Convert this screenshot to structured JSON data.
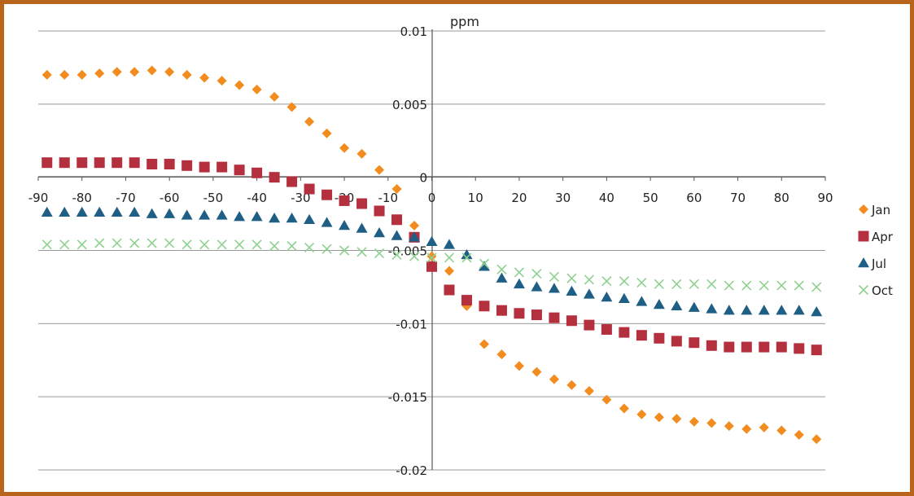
{
  "chart_data": {
    "type": "scatter",
    "title": "",
    "xlabel": "",
    "ylabel": "ppm",
    "xlim": [
      -90,
      90
    ],
    "ylim": [
      -0.02,
      0.01
    ],
    "xticks": [
      -90,
      -80,
      -70,
      -60,
      -50,
      -40,
      -30,
      -20,
      -10,
      0,
      10,
      20,
      30,
      40,
      50,
      60,
      70,
      80,
      90
    ],
    "xtick_labels": [
      "-90",
      "-80",
      "-70",
      "-60",
      "-50",
      "-40",
      "-30",
      "-20",
      "-10",
      "0",
      "10",
      "20",
      "30",
      "40",
      "50",
      "60",
      "70",
      "80",
      "90"
    ],
    "yticks": [
      0.01,
      0.005,
      0,
      -0.005,
      -0.01,
      -0.015,
      -0.02
    ],
    "ytick_labels": [
      "0.01",
      "0.005",
      "0",
      "-0.005",
      "-0.01",
      "-0.015",
      "-0.02"
    ],
    "grid": "horizontal",
    "legend_position": "right",
    "x": [
      -88,
      -84,
      -80,
      -76,
      -72,
      -68,
      -64,
      -60,
      -56,
      -52,
      -48,
      -44,
      -40,
      -36,
      -32,
      -28,
      -24,
      -20,
      -16,
      -12,
      -8,
      -4,
      0,
      4,
      8,
      12,
      16,
      20,
      24,
      28,
      32,
      36,
      40,
      44,
      48,
      52,
      56,
      60,
      64,
      68,
      72,
      76,
      80,
      84,
      88
    ],
    "series": [
      {
        "name": "Jan",
        "marker": "diamond",
        "color": "#f28c1e",
        "values": [
          0.007,
          0.007,
          0.007,
          0.0071,
          0.0072,
          0.0072,
          0.0073,
          0.0072,
          0.007,
          0.0068,
          0.0066,
          0.0063,
          0.006,
          0.0055,
          0.0048,
          0.0038,
          0.003,
          0.002,
          0.0016,
          0.0005,
          -0.0008,
          -0.0033,
          -0.0054,
          -0.0064,
          -0.0088,
          -0.0114,
          -0.0121,
          -0.0129,
          -0.0133,
          -0.0138,
          -0.0142,
          -0.0146,
          -0.0152,
          -0.0158,
          -0.0162,
          -0.0164,
          -0.0165,
          -0.0167,
          -0.0168,
          -0.017,
          -0.0172,
          -0.0171,
          -0.0173,
          -0.0176,
          -0.0179
        ]
      },
      {
        "name": "Apr",
        "marker": "square",
        "color": "#b5303e",
        "values": [
          0.001,
          0.001,
          0.001,
          0.001,
          0.001,
          0.001,
          0.0009,
          0.0009,
          0.0008,
          0.0007,
          0.0007,
          0.0005,
          0.0003,
          0.0,
          -0.0003,
          -0.0008,
          -0.0012,
          -0.0016,
          -0.0018,
          -0.0023,
          -0.0029,
          -0.0041,
          -0.0061,
          -0.0077,
          -0.0084,
          -0.0088,
          -0.0091,
          -0.0093,
          -0.0094,
          -0.0096,
          -0.0098,
          -0.0101,
          -0.0104,
          -0.0106,
          -0.0108,
          -0.011,
          -0.0112,
          -0.0113,
          -0.0115,
          -0.0116,
          -0.0116,
          -0.0116,
          -0.0116,
          -0.0117,
          -0.0118
        ]
      },
      {
        "name": "Jul",
        "marker": "triangle",
        "color": "#1f5f85",
        "values": [
          -0.0024,
          -0.0024,
          -0.0024,
          -0.0024,
          -0.0024,
          -0.0024,
          -0.0025,
          -0.0025,
          -0.0026,
          -0.0026,
          -0.0026,
          -0.0027,
          -0.0027,
          -0.0028,
          -0.0028,
          -0.0029,
          -0.0031,
          -0.0033,
          -0.0035,
          -0.0038,
          -0.004,
          -0.0041,
          -0.0044,
          -0.0046,
          -0.0053,
          -0.0061,
          -0.0069,
          -0.0073,
          -0.0075,
          -0.0076,
          -0.0078,
          -0.008,
          -0.0082,
          -0.0083,
          -0.0085,
          -0.0087,
          -0.0088,
          -0.0089,
          -0.009,
          -0.0091,
          -0.0091,
          -0.0091,
          -0.0091,
          -0.0091,
          -0.0092
        ]
      },
      {
        "name": "Oct",
        "marker": "x",
        "color": "#8ed18f",
        "values": [
          -0.0046,
          -0.0046,
          -0.0046,
          -0.0045,
          -0.0045,
          -0.0045,
          -0.0045,
          -0.0045,
          -0.0046,
          -0.0046,
          -0.0046,
          -0.0046,
          -0.0046,
          -0.0047,
          -0.0047,
          -0.0048,
          -0.0049,
          -0.005,
          -0.0051,
          -0.0052,
          -0.0053,
          -0.0054,
          -0.0055,
          -0.0055,
          -0.0055,
          -0.0059,
          -0.0063,
          -0.0065,
          -0.0066,
          -0.0068,
          -0.0069,
          -0.007,
          -0.0071,
          -0.0071,
          -0.0072,
          -0.0073,
          -0.0073,
          -0.0073,
          -0.0073,
          -0.0074,
          -0.0074,
          -0.0074,
          -0.0074,
          -0.0074,
          -0.0075
        ]
      }
    ]
  },
  "colors": {
    "frame": "#b8651b",
    "gridline": "#999999",
    "axis": "#555555"
  }
}
